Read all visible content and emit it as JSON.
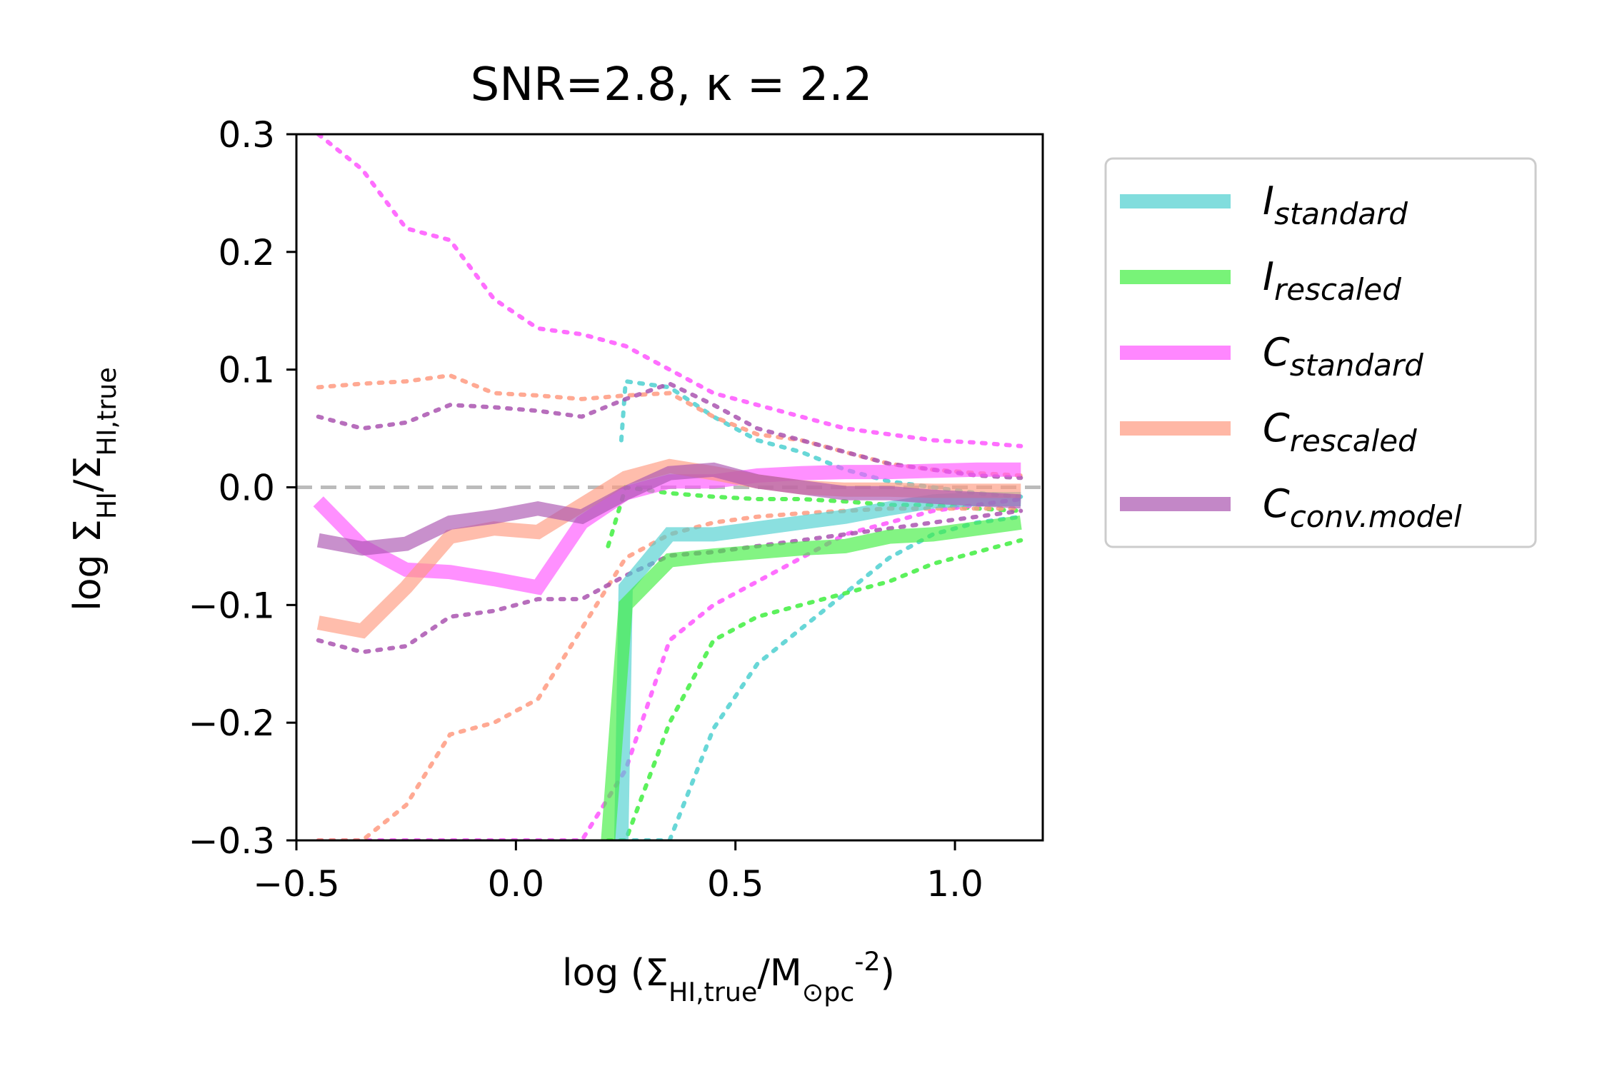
{
  "chart_data": {
    "type": "line",
    "title": "SNR=2.8, κ = 2.2",
    "xlabel": "log (Σ_HI,true/M_⊙pc^-2)",
    "ylabel": "log Σ_HI/Σ_HI,true",
    "xlim": [
      -0.5,
      1.2
    ],
    "ylim": [
      -0.3,
      0.3
    ],
    "xticks": [
      -0.5,
      0.0,
      0.5,
      1.0
    ],
    "xtick_labels": [
      "−0.5",
      "0.0",
      "0.5",
      "1.0"
    ],
    "yticks": [
      -0.3,
      -0.2,
      -0.1,
      0.0,
      0.1,
      0.2,
      0.3
    ],
    "ytick_labels": [
      "−0.3",
      "−0.2",
      "−0.1",
      "0.0",
      "0.1",
      "0.2",
      "0.3"
    ],
    "legend_position": "outside-right",
    "reference_line": {
      "y": 0.0,
      "style": "dashed",
      "color": "#bbbbbb"
    },
    "series": [
      {
        "name": "I_standard",
        "color": "#4dd0d0",
        "x": [
          0.24,
          0.25,
          0.35,
          0.45,
          0.55,
          0.65,
          0.75,
          0.85,
          0.95,
          1.05,
          1.15
        ],
        "median": [
          -0.3,
          -0.085,
          -0.04,
          -0.04,
          -0.035,
          -0.03,
          -0.025,
          -0.018,
          -0.012,
          -0.01,
          -0.01
        ],
        "upper": [
          0.04,
          0.09,
          0.085,
          0.06,
          0.04,
          0.03,
          0.015,
          0.005,
          0.0,
          -0.005,
          -0.008
        ],
        "lower": [
          -0.3,
          -0.3,
          -0.3,
          -0.205,
          -0.15,
          -0.12,
          -0.09,
          -0.06,
          -0.04,
          -0.03,
          -0.025
        ]
      },
      {
        "name": "I_rescaled",
        "color": "#40ee40",
        "x": [
          0.21,
          0.25,
          0.35,
          0.45,
          0.55,
          0.65,
          0.75,
          0.85,
          0.95,
          1.05,
          1.15
        ],
        "median": [
          -0.3,
          -0.1,
          -0.062,
          -0.058,
          -0.055,
          -0.052,
          -0.05,
          -0.042,
          -0.04,
          -0.035,
          -0.03
        ],
        "upper": [
          -0.05,
          0.0,
          -0.005,
          -0.008,
          -0.01,
          -0.01,
          -0.012,
          -0.015,
          -0.015,
          -0.018,
          -0.02
        ],
        "lower": [
          -0.3,
          -0.3,
          -0.2,
          -0.13,
          -0.11,
          -0.1,
          -0.09,
          -0.08,
          -0.065,
          -0.055,
          -0.045
        ]
      },
      {
        "name": "C_standard",
        "color": "#ff55ff",
        "x": [
          -0.45,
          -0.35,
          -0.25,
          -0.15,
          -0.05,
          0.05,
          0.15,
          0.25,
          0.35,
          0.45,
          0.55,
          0.65,
          0.75,
          0.85,
          0.95,
          1.05,
          1.15
        ],
        "median": [
          -0.012,
          -0.05,
          -0.07,
          -0.072,
          -0.078,
          -0.085,
          -0.03,
          -0.005,
          0.005,
          0.005,
          0.01,
          0.012,
          0.013,
          0.013,
          0.014,
          0.015,
          0.015
        ],
        "upper": [
          0.3,
          0.27,
          0.22,
          0.21,
          0.16,
          0.135,
          0.13,
          0.12,
          0.1,
          0.08,
          0.07,
          0.06,
          0.05,
          0.045,
          0.04,
          0.038,
          0.035
        ],
        "lower": [
          -0.3,
          -0.3,
          -0.3,
          -0.3,
          -0.3,
          -0.3,
          -0.3,
          -0.24,
          -0.13,
          -0.1,
          -0.08,
          -0.06,
          -0.04,
          -0.03,
          -0.02,
          -0.015,
          -0.01
        ]
      },
      {
        "name": "C_rescaled",
        "color": "#ff9a80",
        "x": [
          -0.45,
          -0.35,
          -0.25,
          -0.15,
          -0.05,
          0.05,
          0.15,
          0.25,
          0.35,
          0.45,
          0.55,
          0.65,
          0.75,
          0.85,
          0.95,
          1.05,
          1.15
        ],
        "median": [
          -0.115,
          -0.122,
          -0.085,
          -0.042,
          -0.035,
          -0.038,
          -0.015,
          0.008,
          0.018,
          0.012,
          0.005,
          0.0,
          -0.002,
          -0.002,
          -0.003,
          -0.003,
          -0.003
        ],
        "upper": [
          0.085,
          0.088,
          0.09,
          0.095,
          0.08,
          0.078,
          0.075,
          0.078,
          0.08,
          0.06,
          0.045,
          0.04,
          0.03,
          0.02,
          0.015,
          0.012,
          0.01
        ],
        "lower": [
          -0.3,
          -0.3,
          -0.27,
          -0.21,
          -0.2,
          -0.18,
          -0.12,
          -0.06,
          -0.04,
          -0.03,
          -0.025,
          -0.022,
          -0.02,
          -0.018,
          -0.018,
          -0.018,
          -0.018
        ]
      },
      {
        "name": "C_conv.model",
        "color": "#aa55b0",
        "x": [
          -0.45,
          -0.35,
          -0.25,
          -0.15,
          -0.05,
          0.05,
          0.15,
          0.25,
          0.35,
          0.45,
          0.55,
          0.65,
          0.75,
          0.85,
          0.95,
          1.05,
          1.15
        ],
        "median": [
          -0.045,
          -0.052,
          -0.048,
          -0.03,
          -0.025,
          -0.018,
          -0.025,
          -0.005,
          0.012,
          0.015,
          0.005,
          0.0,
          -0.005,
          -0.005,
          -0.008,
          -0.01,
          -0.012
        ],
        "upper": [
          0.06,
          0.05,
          0.055,
          0.07,
          0.068,
          0.065,
          0.06,
          0.075,
          0.088,
          0.07,
          0.05,
          0.04,
          0.03,
          0.02,
          0.015,
          0.01,
          0.008
        ],
        "lower": [
          -0.13,
          -0.14,
          -0.135,
          -0.11,
          -0.105,
          -0.095,
          -0.095,
          -0.075,
          -0.058,
          -0.055,
          -0.05,
          -0.045,
          -0.04,
          -0.035,
          -0.03,
          -0.025,
          -0.02
        ]
      }
    ]
  }
}
